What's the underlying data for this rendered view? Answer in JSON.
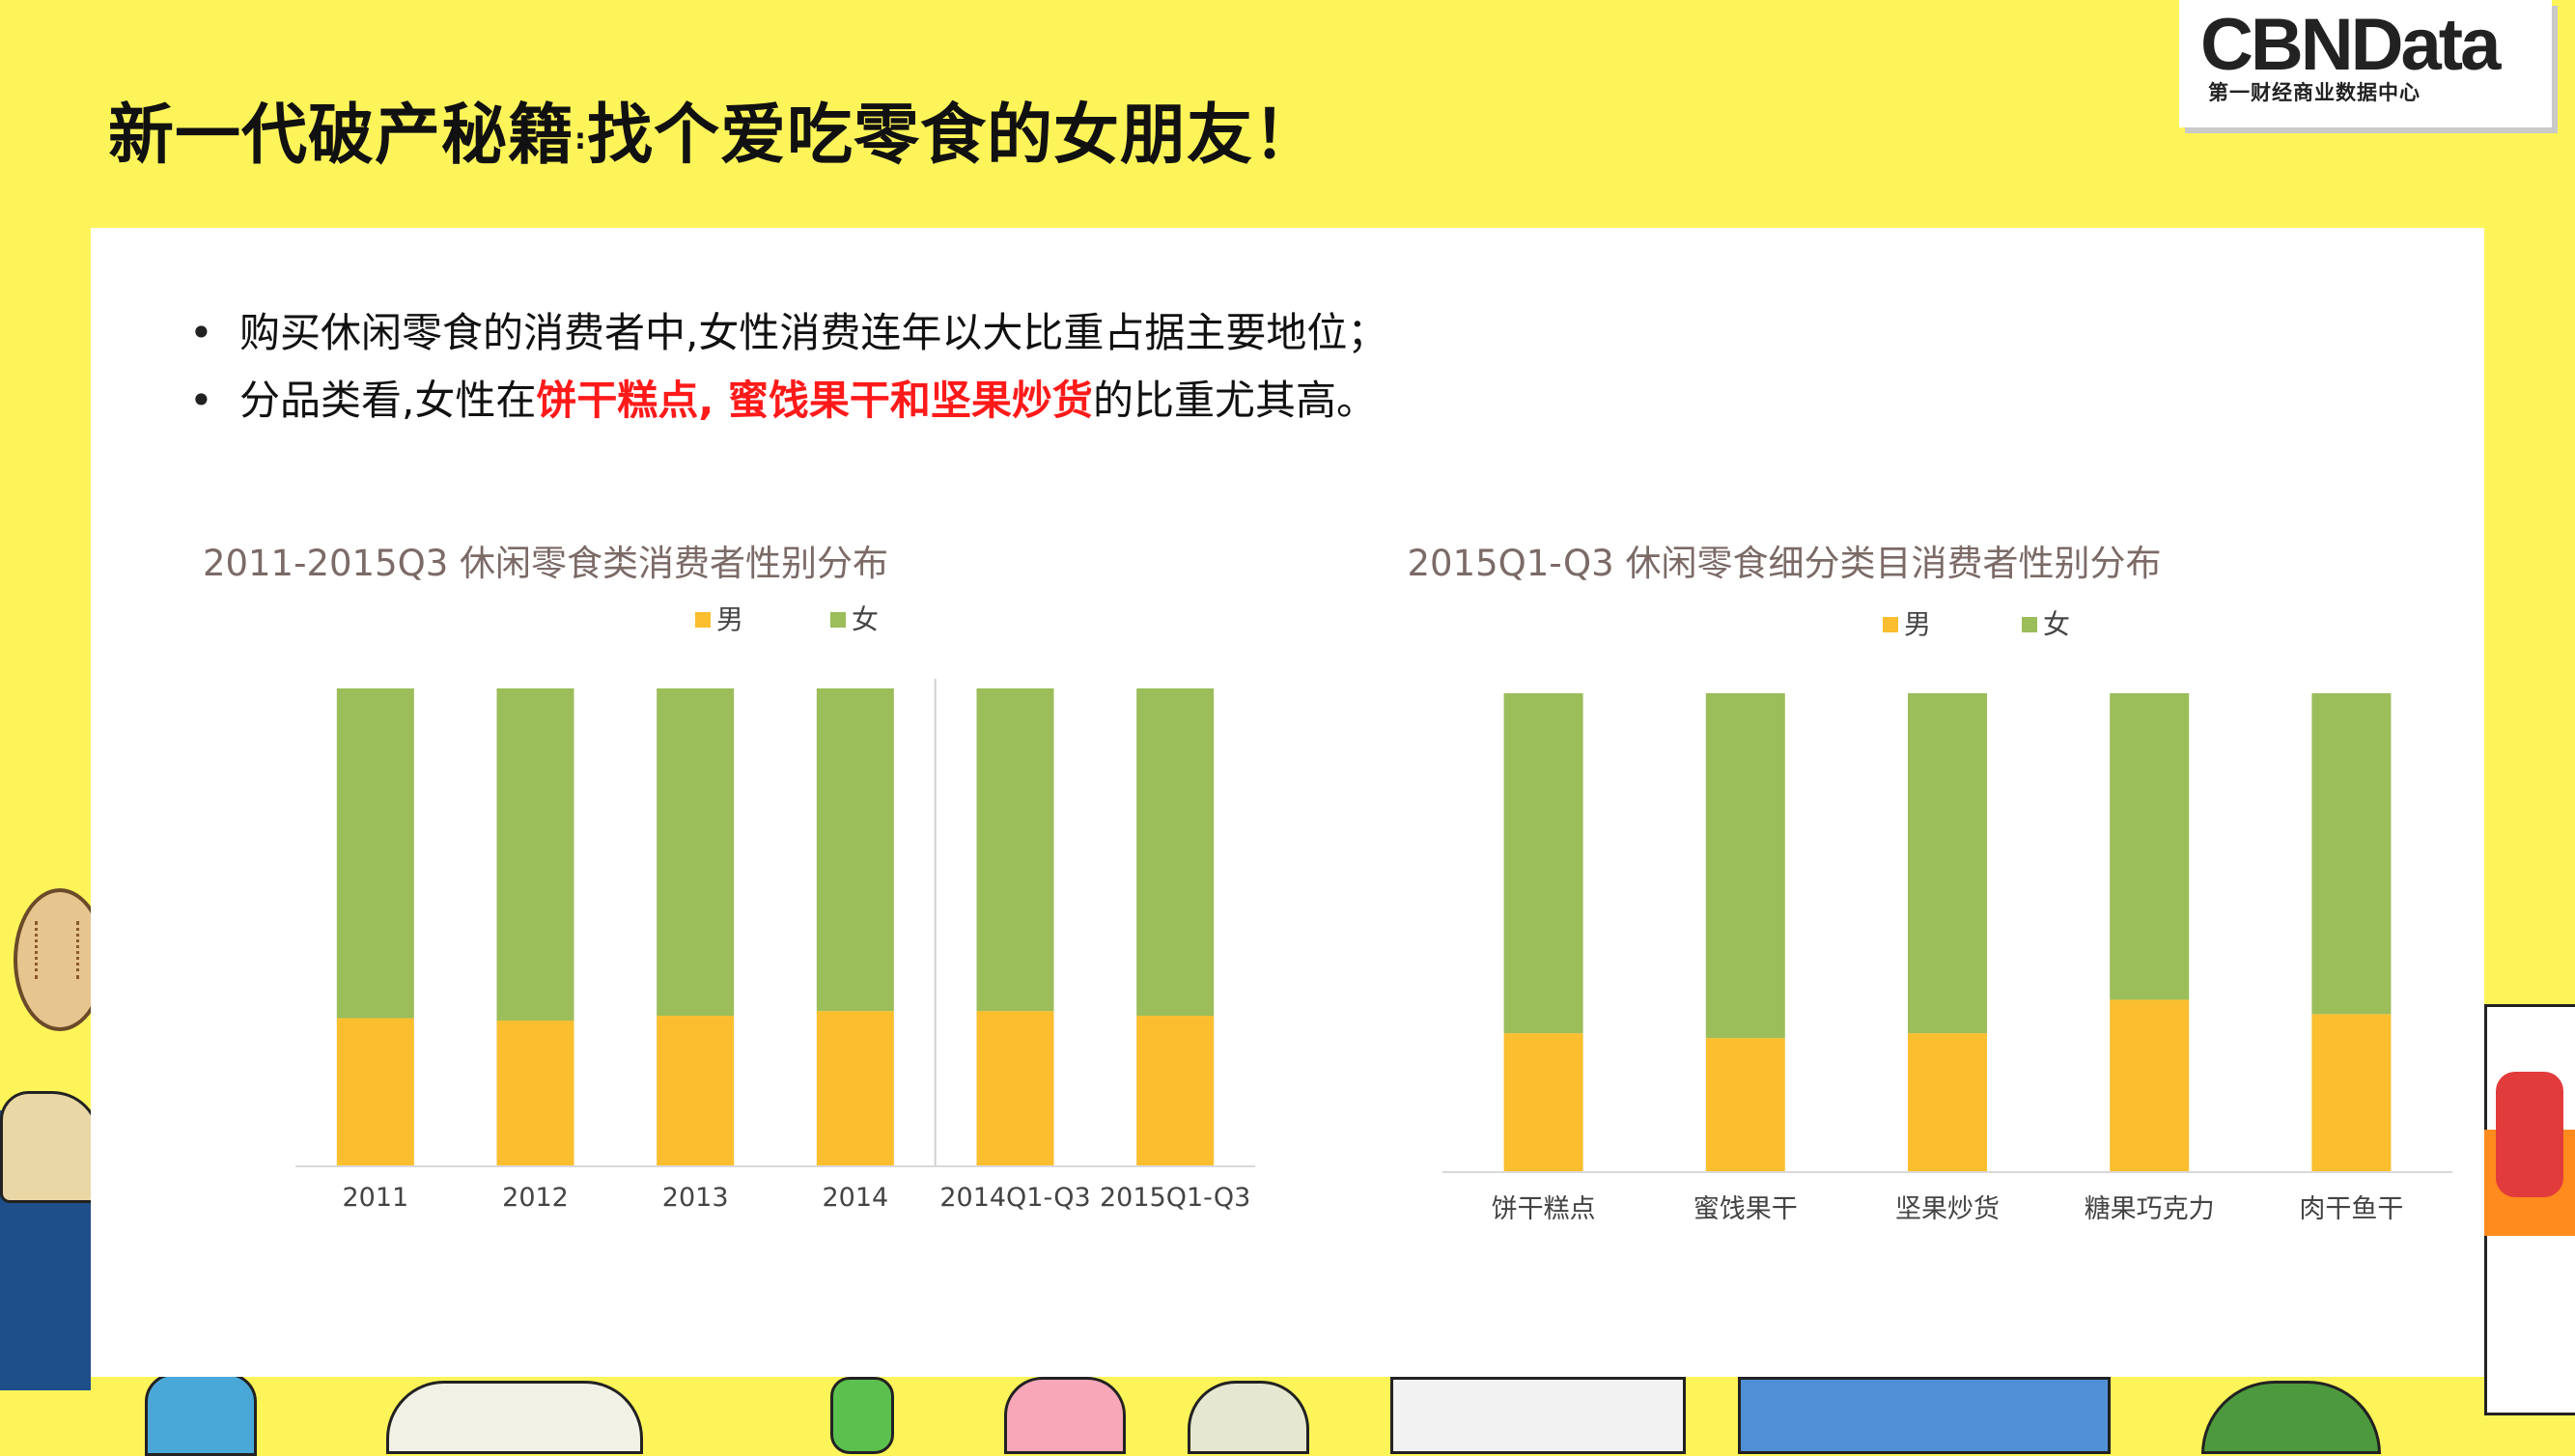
{
  "title": {
    "part1": "新一代破产秘籍",
    "separator": ":",
    "part2": "找个爱吃零食的女朋友！"
  },
  "logo": {
    "brand": "CBNData",
    "subtitle": "第一财经商业数据中心"
  },
  "bullets": [
    {
      "text": "购买休闲零食的消费者中,女性消费连年以大比重占据主要地位；"
    },
    {
      "prefix": "分品类看,女性在",
      "highlight": "饼干糕点, 蜜饯果干和坚果炒货",
      "suffix": "的比重尤其高。"
    }
  ],
  "colors": {
    "male": "#fbbe2e",
    "female": "#9bbd5a",
    "highlight": "#ff1a1a",
    "title_text": "#7b6a66",
    "tick_text": "#444444",
    "background": "#fdf45a"
  },
  "chart_data": [
    {
      "type": "bar",
      "stacked": true,
      "title": "2011-2015Q3 休闲零食类消费者性别分布",
      "categories": [
        "2011",
        "2012",
        "2013",
        "2014",
        "2014Q1-Q3",
        "2015Q1-Q3"
      ],
      "series": [
        {
          "name": "男",
          "values": [
            31,
            30.5,
            31.5,
            32.5,
            32.5,
            31.5
          ]
        },
        {
          "name": "女",
          "values": [
            69,
            69.5,
            68.5,
            67.5,
            67.5,
            68.5
          ]
        }
      ],
      "ylim": [
        0,
        100
      ],
      "legend": "top",
      "grid": false,
      "divider_after_category": "2014"
    },
    {
      "type": "bar",
      "stacked": true,
      "title": "2015Q1-Q3 休闲零食细分类目消费者性别分布",
      "categories": [
        "饼干糕点",
        "蜜饯果干",
        "坚果炒货",
        "糖果巧克力",
        "肉干鱼干"
      ],
      "series": [
        {
          "name": "男",
          "values": [
            29,
            28,
            29,
            36,
            33
          ]
        },
        {
          "name": "女",
          "values": [
            71,
            72,
            71,
            64,
            67
          ]
        }
      ],
      "ylim": [
        0,
        100
      ],
      "legend": "top",
      "grid": false
    }
  ]
}
